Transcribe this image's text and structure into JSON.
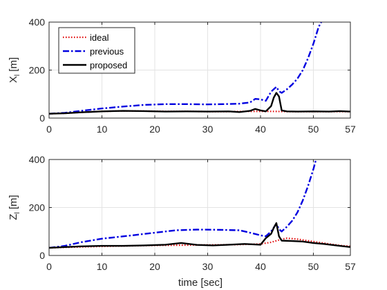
{
  "figure": {
    "xlabel": "time [sec]"
  },
  "colors": {
    "ideal": "#e00000",
    "previous": "#0000e0",
    "proposed": "#000000",
    "grid": "#e3e3e3",
    "axis": "#262626"
  },
  "chart_data": [
    {
      "type": "line",
      "ylabel_main": "X",
      "ylabel_sub": "l",
      "ylabel_unit": "[m]",
      "xlim": [
        0,
        57
      ],
      "ylim": [
        0,
        400
      ],
      "xticks": [
        0,
        10,
        20,
        30,
        40,
        50,
        57
      ],
      "yticks": [
        0,
        200,
        400
      ],
      "grid": true,
      "legend_position": "top-left",
      "series": [
        {
          "name": "ideal",
          "style": "dotted",
          "points": [
            [
              0,
              18
            ],
            [
              3,
              20
            ],
            [
              6,
              24
            ],
            [
              10,
              28
            ],
            [
              14,
              30
            ],
            [
              18,
              29
            ],
            [
              22,
              28
            ],
            [
              26,
              28
            ],
            [
              30,
              27
            ],
            [
              34,
              27
            ],
            [
              38,
              28
            ],
            [
              41,
              28
            ],
            [
              42,
              28
            ],
            [
              45,
              27
            ],
            [
              50,
              27
            ],
            [
              54,
              27
            ],
            [
              57,
              27
            ]
          ]
        },
        {
          "name": "previous",
          "style": "dashdot",
          "points": [
            [
              0,
              18
            ],
            [
              3,
              22
            ],
            [
              6,
              30
            ],
            [
              10,
              40
            ],
            [
              14,
              48
            ],
            [
              18,
              55
            ],
            [
              22,
              58
            ],
            [
              26,
              58
            ],
            [
              30,
              57
            ],
            [
              33,
              58
            ],
            [
              36,
              60
            ],
            [
              38,
              65
            ],
            [
              39,
              80
            ],
            [
              40,
              78
            ],
            [
              41,
              72
            ],
            [
              42,
              110
            ],
            [
              43,
              130
            ],
            [
              43.5,
              112
            ],
            [
              44,
              105
            ],
            [
              45,
              120
            ],
            [
              46,
              140
            ],
            [
              47,
              165
            ],
            [
              48,
              200
            ],
            [
              49,
              250
            ],
            [
              50,
              310
            ],
            [
              51,
              380
            ],
            [
              51.5,
              400
            ]
          ]
        },
        {
          "name": "proposed",
          "style": "solid",
          "points": [
            [
              0,
              18
            ],
            [
              3,
              20
            ],
            [
              6,
              24
            ],
            [
              10,
              28
            ],
            [
              14,
              30
            ],
            [
              18,
              29
            ],
            [
              22,
              27
            ],
            [
              26,
              28
            ],
            [
              30,
              27
            ],
            [
              34,
              28
            ],
            [
              36,
              25
            ],
            [
              38,
              30
            ],
            [
              39,
              38
            ],
            [
              40,
              32
            ],
            [
              41,
              28
            ],
            [
              42,
              50
            ],
            [
              42.5,
              85
            ],
            [
              43,
              105
            ],
            [
              43.5,
              90
            ],
            [
              44,
              32
            ],
            [
              45,
              28
            ],
            [
              47,
              27
            ],
            [
              50,
              28
            ],
            [
              53,
              27
            ],
            [
              55,
              29
            ],
            [
              57,
              27
            ]
          ]
        }
      ]
    },
    {
      "type": "line",
      "ylabel_main": "Z",
      "ylabel_sub": "l",
      "ylabel_unit": "[m]",
      "xlabel": "time [sec]",
      "xlim": [
        0,
        57
      ],
      "ylim": [
        0,
        400
      ],
      "xticks": [
        0,
        10,
        20,
        30,
        40,
        50,
        57
      ],
      "yticks": [
        0,
        200,
        400
      ],
      "grid": true,
      "series": [
        {
          "name": "ideal",
          "style": "dotted",
          "points": [
            [
              0,
              32
            ],
            [
              5,
              35
            ],
            [
              10,
              38
            ],
            [
              15,
              40
            ],
            [
              20,
              42
            ],
            [
              25,
              43
            ],
            [
              30,
              44
            ],
            [
              35,
              45
            ],
            [
              40,
              48
            ],
            [
              42,
              55
            ],
            [
              44,
              68
            ],
            [
              45,
              72
            ],
            [
              47,
              68
            ],
            [
              50,
              58
            ],
            [
              53,
              48
            ],
            [
              55,
              42
            ],
            [
              57,
              38
            ]
          ]
        },
        {
          "name": "previous",
          "style": "dashdot",
          "points": [
            [
              0,
              32
            ],
            [
              3,
              40
            ],
            [
              6,
              55
            ],
            [
              10,
              70
            ],
            [
              15,
              82
            ],
            [
              20,
              95
            ],
            [
              24,
              105
            ],
            [
              28,
              108
            ],
            [
              32,
              107
            ],
            [
              36,
              105
            ],
            [
              38,
              95
            ],
            [
              40,
              84
            ],
            [
              41,
              80
            ],
            [
              42,
              100
            ],
            [
              43,
              132
            ],
            [
              43.5,
              110
            ],
            [
              44,
              100
            ],
            [
              45,
              120
            ],
            [
              46,
              145
            ],
            [
              47,
              180
            ],
            [
              48,
              230
            ],
            [
              49,
              290
            ],
            [
              50,
              360
            ],
            [
              50.5,
              400
            ]
          ]
        },
        {
          "name": "proposed",
          "style": "solid",
          "points": [
            [
              0,
              32
            ],
            [
              3,
              35
            ],
            [
              6,
              38
            ],
            [
              10,
              40
            ],
            [
              14,
              40
            ],
            [
              18,
              42
            ],
            [
              22,
              45
            ],
            [
              25,
              52
            ],
            [
              28,
              44
            ],
            [
              31,
              42
            ],
            [
              34,
              45
            ],
            [
              37,
              48
            ],
            [
              40,
              45
            ],
            [
              41,
              72
            ],
            [
              42,
              90
            ],
            [
              42.5,
              115
            ],
            [
              43,
              135
            ],
            [
              43.5,
              80
            ],
            [
              44,
              62
            ],
            [
              46,
              60
            ],
            [
              48,
              58
            ],
            [
              50,
              52
            ],
            [
              52,
              48
            ],
            [
              55,
              40
            ],
            [
              57,
              35
            ]
          ]
        }
      ]
    }
  ]
}
